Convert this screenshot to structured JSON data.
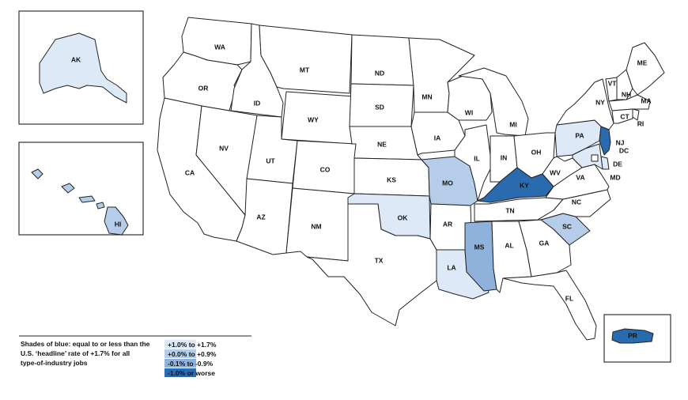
{
  "colors": {
    "base": "#ffffff",
    "tier1": "#dde9f6",
    "tier2": "#b5cde9",
    "tier3": "#8fb2dc",
    "tier4": "#2a6bb0",
    "border": "#222222"
  },
  "states": [
    {
      "code": "WA",
      "tier": "base"
    },
    {
      "code": "OR",
      "tier": "base"
    },
    {
      "code": "CA",
      "tier": "base"
    },
    {
      "code": "ID",
      "tier": "base"
    },
    {
      "code": "NV",
      "tier": "base"
    },
    {
      "code": "MT",
      "tier": "base"
    },
    {
      "code": "WY",
      "tier": "base"
    },
    {
      "code": "UT",
      "tier": "base"
    },
    {
      "code": "AZ",
      "tier": "base"
    },
    {
      "code": "CO",
      "tier": "base"
    },
    {
      "code": "NM",
      "tier": "base"
    },
    {
      "code": "ND",
      "tier": "base"
    },
    {
      "code": "SD",
      "tier": "base"
    },
    {
      "code": "NE",
      "tier": "base"
    },
    {
      "code": "KS",
      "tier": "base"
    },
    {
      "code": "OK",
      "tier": "tier1"
    },
    {
      "code": "TX",
      "tier": "base"
    },
    {
      "code": "MN",
      "tier": "base"
    },
    {
      "code": "IA",
      "tier": "base"
    },
    {
      "code": "MO",
      "tier": "tier2"
    },
    {
      "code": "AR",
      "tier": "base"
    },
    {
      "code": "LA",
      "tier": "tier1"
    },
    {
      "code": "WI",
      "tier": "base"
    },
    {
      "code": "IL",
      "tier": "base"
    },
    {
      "code": "MI",
      "tier": "base"
    },
    {
      "code": "IN",
      "tier": "base"
    },
    {
      "code": "OH",
      "tier": "base"
    },
    {
      "code": "KY",
      "tier": "tier4"
    },
    {
      "code": "TN",
      "tier": "base"
    },
    {
      "code": "MS",
      "tier": "tier3"
    },
    {
      "code": "AL",
      "tier": "base"
    },
    {
      "code": "GA",
      "tier": "base"
    },
    {
      "code": "FL",
      "tier": "base"
    },
    {
      "code": "SC",
      "tier": "tier2"
    },
    {
      "code": "NC",
      "tier": "base"
    },
    {
      "code": "VA",
      "tier": "base"
    },
    {
      "code": "WV",
      "tier": "base"
    },
    {
      "code": "PA",
      "tier": "tier1"
    },
    {
      "code": "NY",
      "tier": "base"
    },
    {
      "code": "VT",
      "tier": "base"
    },
    {
      "code": "NH",
      "tier": "base"
    },
    {
      "code": "ME",
      "tier": "base"
    },
    {
      "code": "MA",
      "tier": "base"
    },
    {
      "code": "RI",
      "tier": "base"
    },
    {
      "code": "CT",
      "tier": "base"
    },
    {
      "code": "NJ",
      "tier": "tier4"
    },
    {
      "code": "DE",
      "tier": "tier1"
    },
    {
      "code": "MD",
      "tier": "tier1"
    },
    {
      "code": "DC",
      "tier": "base"
    },
    {
      "code": "AK",
      "tier": "tier1"
    },
    {
      "code": "HI",
      "tier": "tier2"
    },
    {
      "code": "PR",
      "tier": "tier4"
    }
  ],
  "legend": {
    "description": "Shades of blue: equal to or less than the U.S. 'headline' rate of +1.7% for all type-of-industry jobs",
    "description_lines": [
      "Shades of blue: equal to or less than the",
      "U.S. ‘headline’ rate of +1.7% for all",
      "type-of-industry jobs"
    ],
    "items": [
      {
        "label": "+1.0% to +1.7%",
        "tier": "tier1"
      },
      {
        "label": "+0.0% to +0.9%",
        "tier": "tier2"
      },
      {
        "label": "-0.1% to -0.9%",
        "tier": "tier3"
      },
      {
        "label": "-1.0% or worse",
        "tier": "tier4"
      }
    ]
  }
}
